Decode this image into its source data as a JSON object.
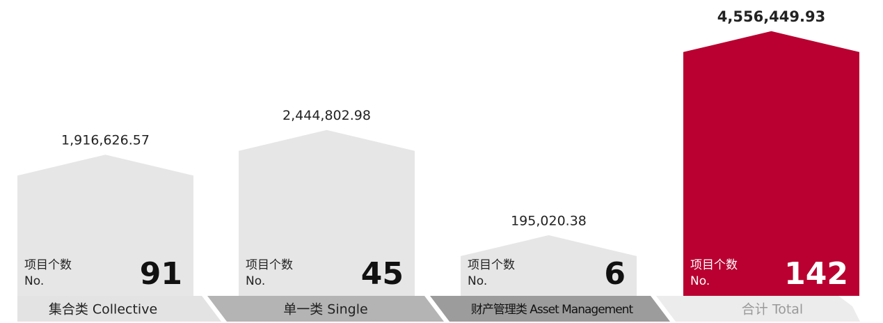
{
  "chart_data": {
    "type": "bar",
    "categories": [
      "集合类 Collective",
      "单一类 Single",
      "财产管理类 Asset Management",
      "合计 Total"
    ],
    "values": [
      1916626.57,
      2444802.98,
      195020.38,
      4556449.93
    ],
    "value_labels": [
      "1,916,626.57",
      "2,444,802.98",
      "195,020.38",
      "4,556,449.93"
    ],
    "colors": [
      "#e6e6e6",
      "#e6e6e6",
      "#e6e6e6",
      "#b90030"
    ],
    "count_label": "项目个数",
    "count_sublabel": "No.",
    "counts": [
      91,
      45,
      6,
      142
    ]
  }
}
